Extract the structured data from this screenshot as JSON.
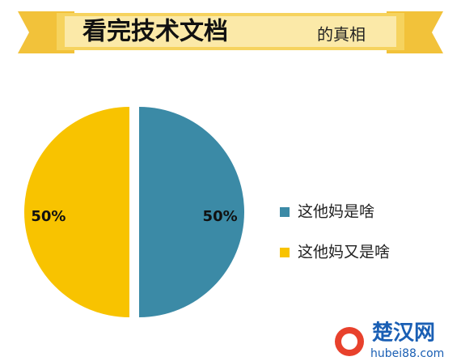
{
  "chart_data": {
    "type": "pie",
    "title": "看完技术文档",
    "title_small": "的真相",
    "series": [
      {
        "name": "这他妈是啥",
        "color": "#3b8aa6",
        "values": [
          50
        ],
        "value_labels": [
          "50%"
        ]
      },
      {
        "name": "这他妈又是啥",
        "color": "#f8c300",
        "values": [
          50
        ],
        "value_labels": [
          "50%"
        ]
      }
    ],
    "legend": "right",
    "watermark": {
      "name": "楚汉网",
      "url": "hubei88.com"
    }
  }
}
